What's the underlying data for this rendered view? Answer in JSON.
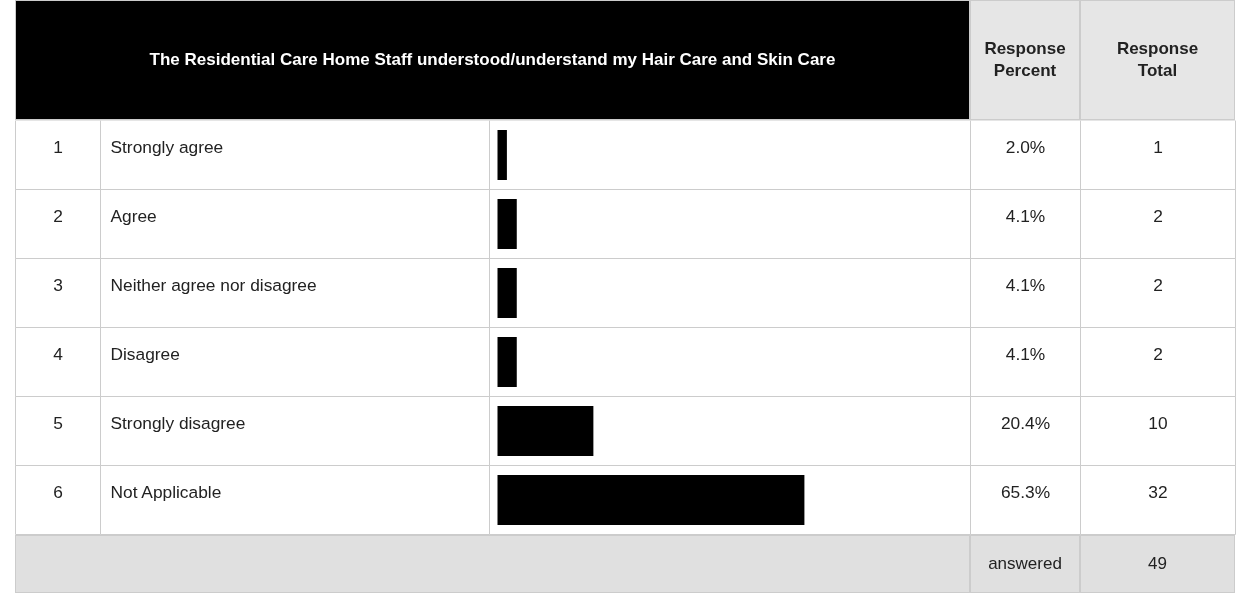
{
  "chart_data": {
    "type": "bar",
    "orientation": "horizontal",
    "title": "The Residential Care Home Staff understood/understand my Hair Care and Skin Care",
    "categories": [
      "Strongly agree",
      "Agree",
      "Neither agree nor disagree",
      "Disagree",
      "Strongly disagree",
      "Not Applicable"
    ],
    "values": [
      2.0,
      4.1,
      4.1,
      4.1,
      20.4,
      65.3
    ],
    "value_labels": [
      "2.0%",
      "4.1%",
      "4.1%",
      "4.1%",
      "20.4%",
      "65.3%"
    ],
    "color": "#000000",
    "tick_labels": false,
    "annotations": [
      "Response Percent",
      "Response Total",
      "1",
      "2",
      "3",
      "4",
      "5",
      "6",
      "1",
      "2",
      "2",
      "2",
      "10",
      "32",
      "answered",
      "49"
    ]
  }
}
